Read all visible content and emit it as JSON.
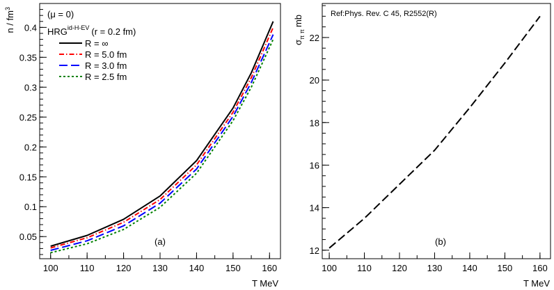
{
  "chart_data": [
    {
      "type": "line",
      "panel_label": "(a)",
      "xlabel": "T MeV",
      "ylabel": "n / fm",
      "ylabel_sup": "3",
      "xlim": [
        97,
        163
      ],
      "ylim": [
        0.013,
        0.44
      ],
      "xticks": [
        100,
        110,
        120,
        130,
        140,
        150,
        160
      ],
      "xtick_labels": [
        "100",
        "110",
        "120",
        "130",
        "140",
        "150",
        "160"
      ],
      "yticks": [
        0.05,
        0.1,
        0.15,
        0.2,
        0.25,
        0.3,
        0.35,
        0.4
      ],
      "ytick_labels": [
        "0.05",
        "0.1",
        "0.15",
        "0.2",
        "0.25",
        "0.3",
        "0.35",
        "0.4"
      ],
      "grid": false,
      "legend_position": "top-left",
      "legend_header": "(μ = 0)",
      "legend_model": {
        "base": "HRG",
        "sup": "id-H-EV",
        "params": "(r = 0.2 fm)"
      },
      "series": [
        {
          "name": "R = ∞",
          "color": "#000000",
          "dash": "solid",
          "x": [
            100,
            110,
            120,
            130,
            140,
            150,
            155,
            161
          ],
          "y": [
            0.034,
            0.052,
            0.079,
            0.118,
            0.177,
            0.265,
            0.324,
            0.41
          ]
        },
        {
          "name": "R = 5.0 fm",
          "color": "#ff0000",
          "dash": "dashdot",
          "x": [
            100,
            110,
            120,
            130,
            140,
            150,
            155,
            161
          ],
          "y": [
            0.031,
            0.048,
            0.074,
            0.112,
            0.17,
            0.258,
            0.316,
            0.4
          ]
        },
        {
          "name": "R = 3.0 fm",
          "color": "#0000ff",
          "dash": "longdash",
          "x": [
            100,
            110,
            120,
            130,
            140,
            150,
            155,
            161
          ],
          "y": [
            0.027,
            0.043,
            0.068,
            0.106,
            0.163,
            0.251,
            0.308,
            0.388
          ]
        },
        {
          "name": "R = 2.5 fm",
          "color": "#008000",
          "dash": "dotted",
          "x": [
            100,
            110,
            120,
            130,
            140,
            150,
            155,
            161
          ],
          "y": [
            0.023,
            0.038,
            0.062,
            0.099,
            0.156,
            0.244,
            0.3,
            0.38
          ]
        }
      ]
    },
    {
      "type": "line",
      "panel_label": "(b)",
      "xlabel": "T MeV",
      "ylabel": "σ",
      "ylabel_sub": "π π",
      "ylabel_unit": "mb",
      "xlim": [
        98,
        163
      ],
      "ylim": [
        11.6,
        23.6
      ],
      "xticks": [
        100,
        110,
        120,
        130,
        140,
        150,
        160
      ],
      "xtick_labels": [
        "100",
        "110",
        "120",
        "130",
        "140",
        "150",
        "160"
      ],
      "yticks": [
        12,
        14,
        16,
        18,
        20,
        22
      ],
      "ytick_labels": [
        "12",
        "14",
        "16",
        "18",
        "20",
        "22"
      ],
      "grid": false,
      "annotation": "Ref:Phys. Rev. C 45, R2552(R)",
      "series": [
        {
          "color": "#000000",
          "dash": "longdash",
          "x": [
            100,
            110,
            120,
            130,
            140,
            150,
            160
          ],
          "y": [
            12.1,
            13.5,
            15.1,
            16.7,
            18.7,
            20.8,
            23.0
          ]
        }
      ]
    }
  ]
}
